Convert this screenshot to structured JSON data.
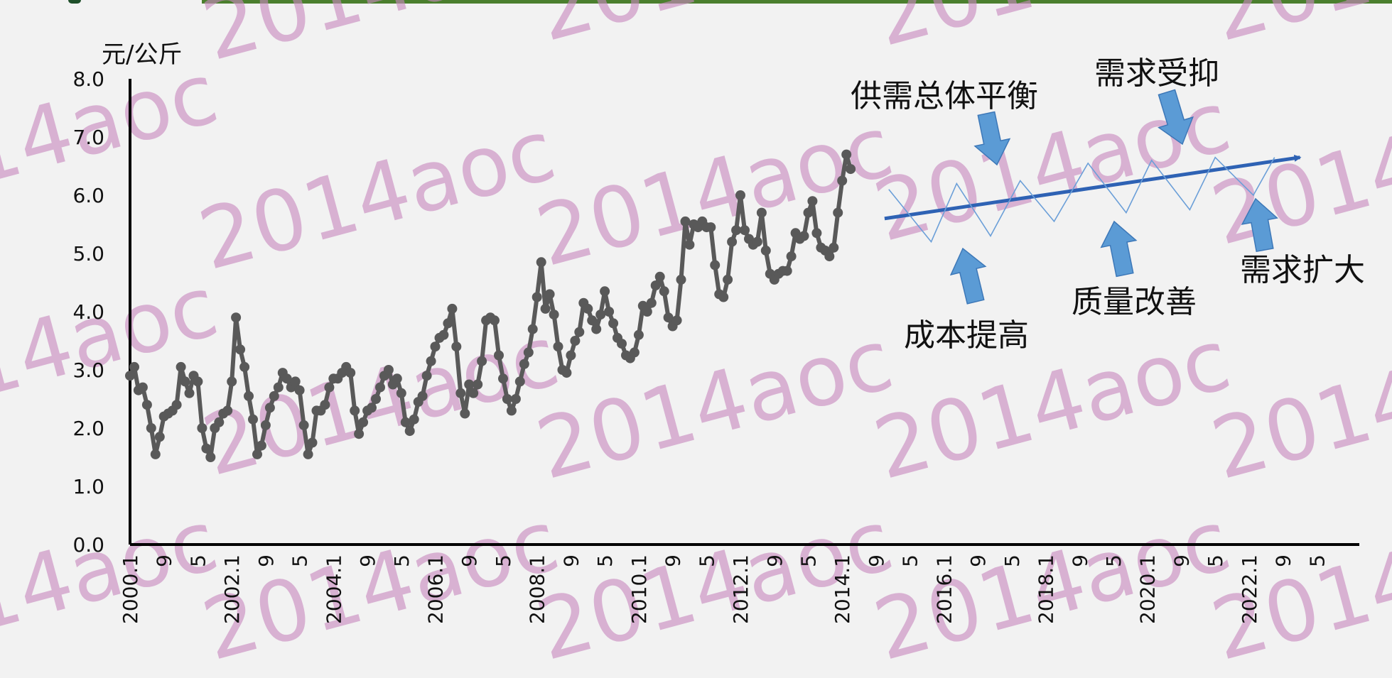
{
  "top_bar_color": "#4b7f2e",
  "watermark_text": "2014aoc",
  "chart_data": {
    "type": "line",
    "title": "",
    "ylabel": "元/公斤",
    "xlabel": "",
    "ylim": [
      0,
      8
    ],
    "y_ticks": [
      "0.0",
      "1.0",
      "2.0",
      "3.0",
      "4.0",
      "5.0",
      "6.0",
      "7.0",
      "8.0"
    ],
    "x_tick_labels": [
      "2000.1",
      "9",
      "5",
      "2002.1",
      "9",
      "5",
      "2004.1",
      "9",
      "5",
      "2006.1",
      "9",
      "5",
      "2008.1",
      "9",
      "5",
      "2010.1",
      "9",
      "5",
      "2012.1",
      "9",
      "5",
      "2014.1",
      "9",
      "5",
      "2016.1",
      "9",
      "5",
      "2018.1",
      "9",
      "5",
      "2020.1",
      "9",
      "5",
      "2022.1",
      "9",
      "5"
    ],
    "x_tick_month_index": [
      0,
      8,
      16,
      24,
      32,
      40,
      48,
      56,
      64,
      72,
      80,
      88,
      96,
      104,
      112,
      120,
      128,
      136,
      144,
      152,
      160,
      168,
      176,
      184,
      192,
      200,
      208,
      216,
      224,
      232,
      240,
      248,
      256,
      264,
      272,
      280
    ],
    "x_month_max": 290,
    "series": [
      {
        "color": "#595959",
        "values": [
          2.9,
          3.05,
          2.65,
          2.7,
          2.4,
          2.0,
          1.55,
          1.85,
          2.2,
          2.25,
          2.3,
          2.4,
          3.05,
          2.8,
          2.6,
          2.9,
          2.8,
          2.0,
          1.65,
          1.5,
          2.0,
          2.1,
          2.25,
          2.3,
          2.8,
          3.9,
          3.35,
          3.05,
          2.55,
          2.15,
          1.55,
          1.7,
          2.05,
          2.35,
          2.55,
          2.7,
          2.95,
          2.85,
          2.7,
          2.8,
          2.65,
          2.05,
          1.55,
          1.75,
          2.3,
          2.3,
          2.4,
          2.7,
          2.85,
          2.85,
          2.95,
          3.05,
          2.95,
          2.3,
          1.9,
          2.1,
          2.3,
          2.35,
          2.5,
          2.7,
          2.9,
          3.0,
          2.75,
          2.85,
          2.6,
          2.1,
          1.95,
          2.15,
          2.45,
          2.55,
          2.9,
          3.15,
          3.4,
          3.55,
          3.6,
          3.8,
          4.05,
          3.4,
          2.6,
          2.25,
          2.75,
          2.6,
          2.75,
          3.15,
          3.85,
          3.9,
          3.85,
          3.25,
          2.85,
          2.5,
          2.3,
          2.5,
          2.8,
          3.1,
          3.3,
          3.7,
          4.25,
          4.85,
          4.05,
          4.3,
          3.95,
          3.4,
          3.0,
          2.95,
          3.25,
          3.5,
          3.65,
          4.15,
          4.05,
          3.85,
          3.7,
          3.95,
          4.35,
          4.0,
          3.8,
          3.55,
          3.45,
          3.25,
          3.2,
          3.3,
          3.6,
          4.1,
          4.0,
          4.15,
          4.45,
          4.6,
          4.35,
          3.9,
          3.75,
          3.85,
          4.55,
          5.55,
          5.15,
          5.5,
          5.45,
          5.55,
          5.45,
          5.45,
          4.8,
          4.3,
          4.25,
          4.55,
          5.2,
          5.4,
          6.0,
          5.4,
          5.25,
          5.15,
          5.2,
          5.7,
          5.05,
          4.65,
          4.55,
          4.65,
          4.7,
          4.7,
          4.95,
          5.35,
          5.25,
          5.3,
          5.7,
          5.9,
          5.35,
          5.1,
          5.05,
          4.95,
          5.1,
          5.7,
          6.25,
          6.7,
          6.45
        ]
      }
    ],
    "trend_lines": [
      {
        "name": "trend-arrow",
        "color": "#2e62b4",
        "points": [
          [
            178,
            5.6
          ],
          [
            276,
            6.65
          ]
        ]
      },
      {
        "name": "oscillation",
        "color": "#6b9fd8",
        "points": [
          [
            179,
            6.1
          ],
          [
            189,
            5.2
          ],
          [
            195,
            6.2
          ],
          [
            203,
            5.3
          ],
          [
            210,
            6.25
          ],
          [
            218,
            5.55
          ],
          [
            226,
            6.55
          ],
          [
            235,
            5.7
          ],
          [
            241,
            6.6
          ],
          [
            250,
            5.75
          ],
          [
            256,
            6.65
          ],
          [
            265,
            6.0
          ],
          [
            270,
            6.65
          ]
        ]
      }
    ],
    "annotations": [
      {
        "name": "balance",
        "text": "供需总体平衡"
      },
      {
        "name": "suppressed",
        "text": "需求受抑"
      },
      {
        "name": "cost",
        "text": "成本提高"
      },
      {
        "name": "quality",
        "text": "质量改善"
      },
      {
        "name": "expand",
        "text": "需求扩大"
      }
    ],
    "arrow_color": "#5b9bd5",
    "grid": false,
    "legend": "none"
  }
}
